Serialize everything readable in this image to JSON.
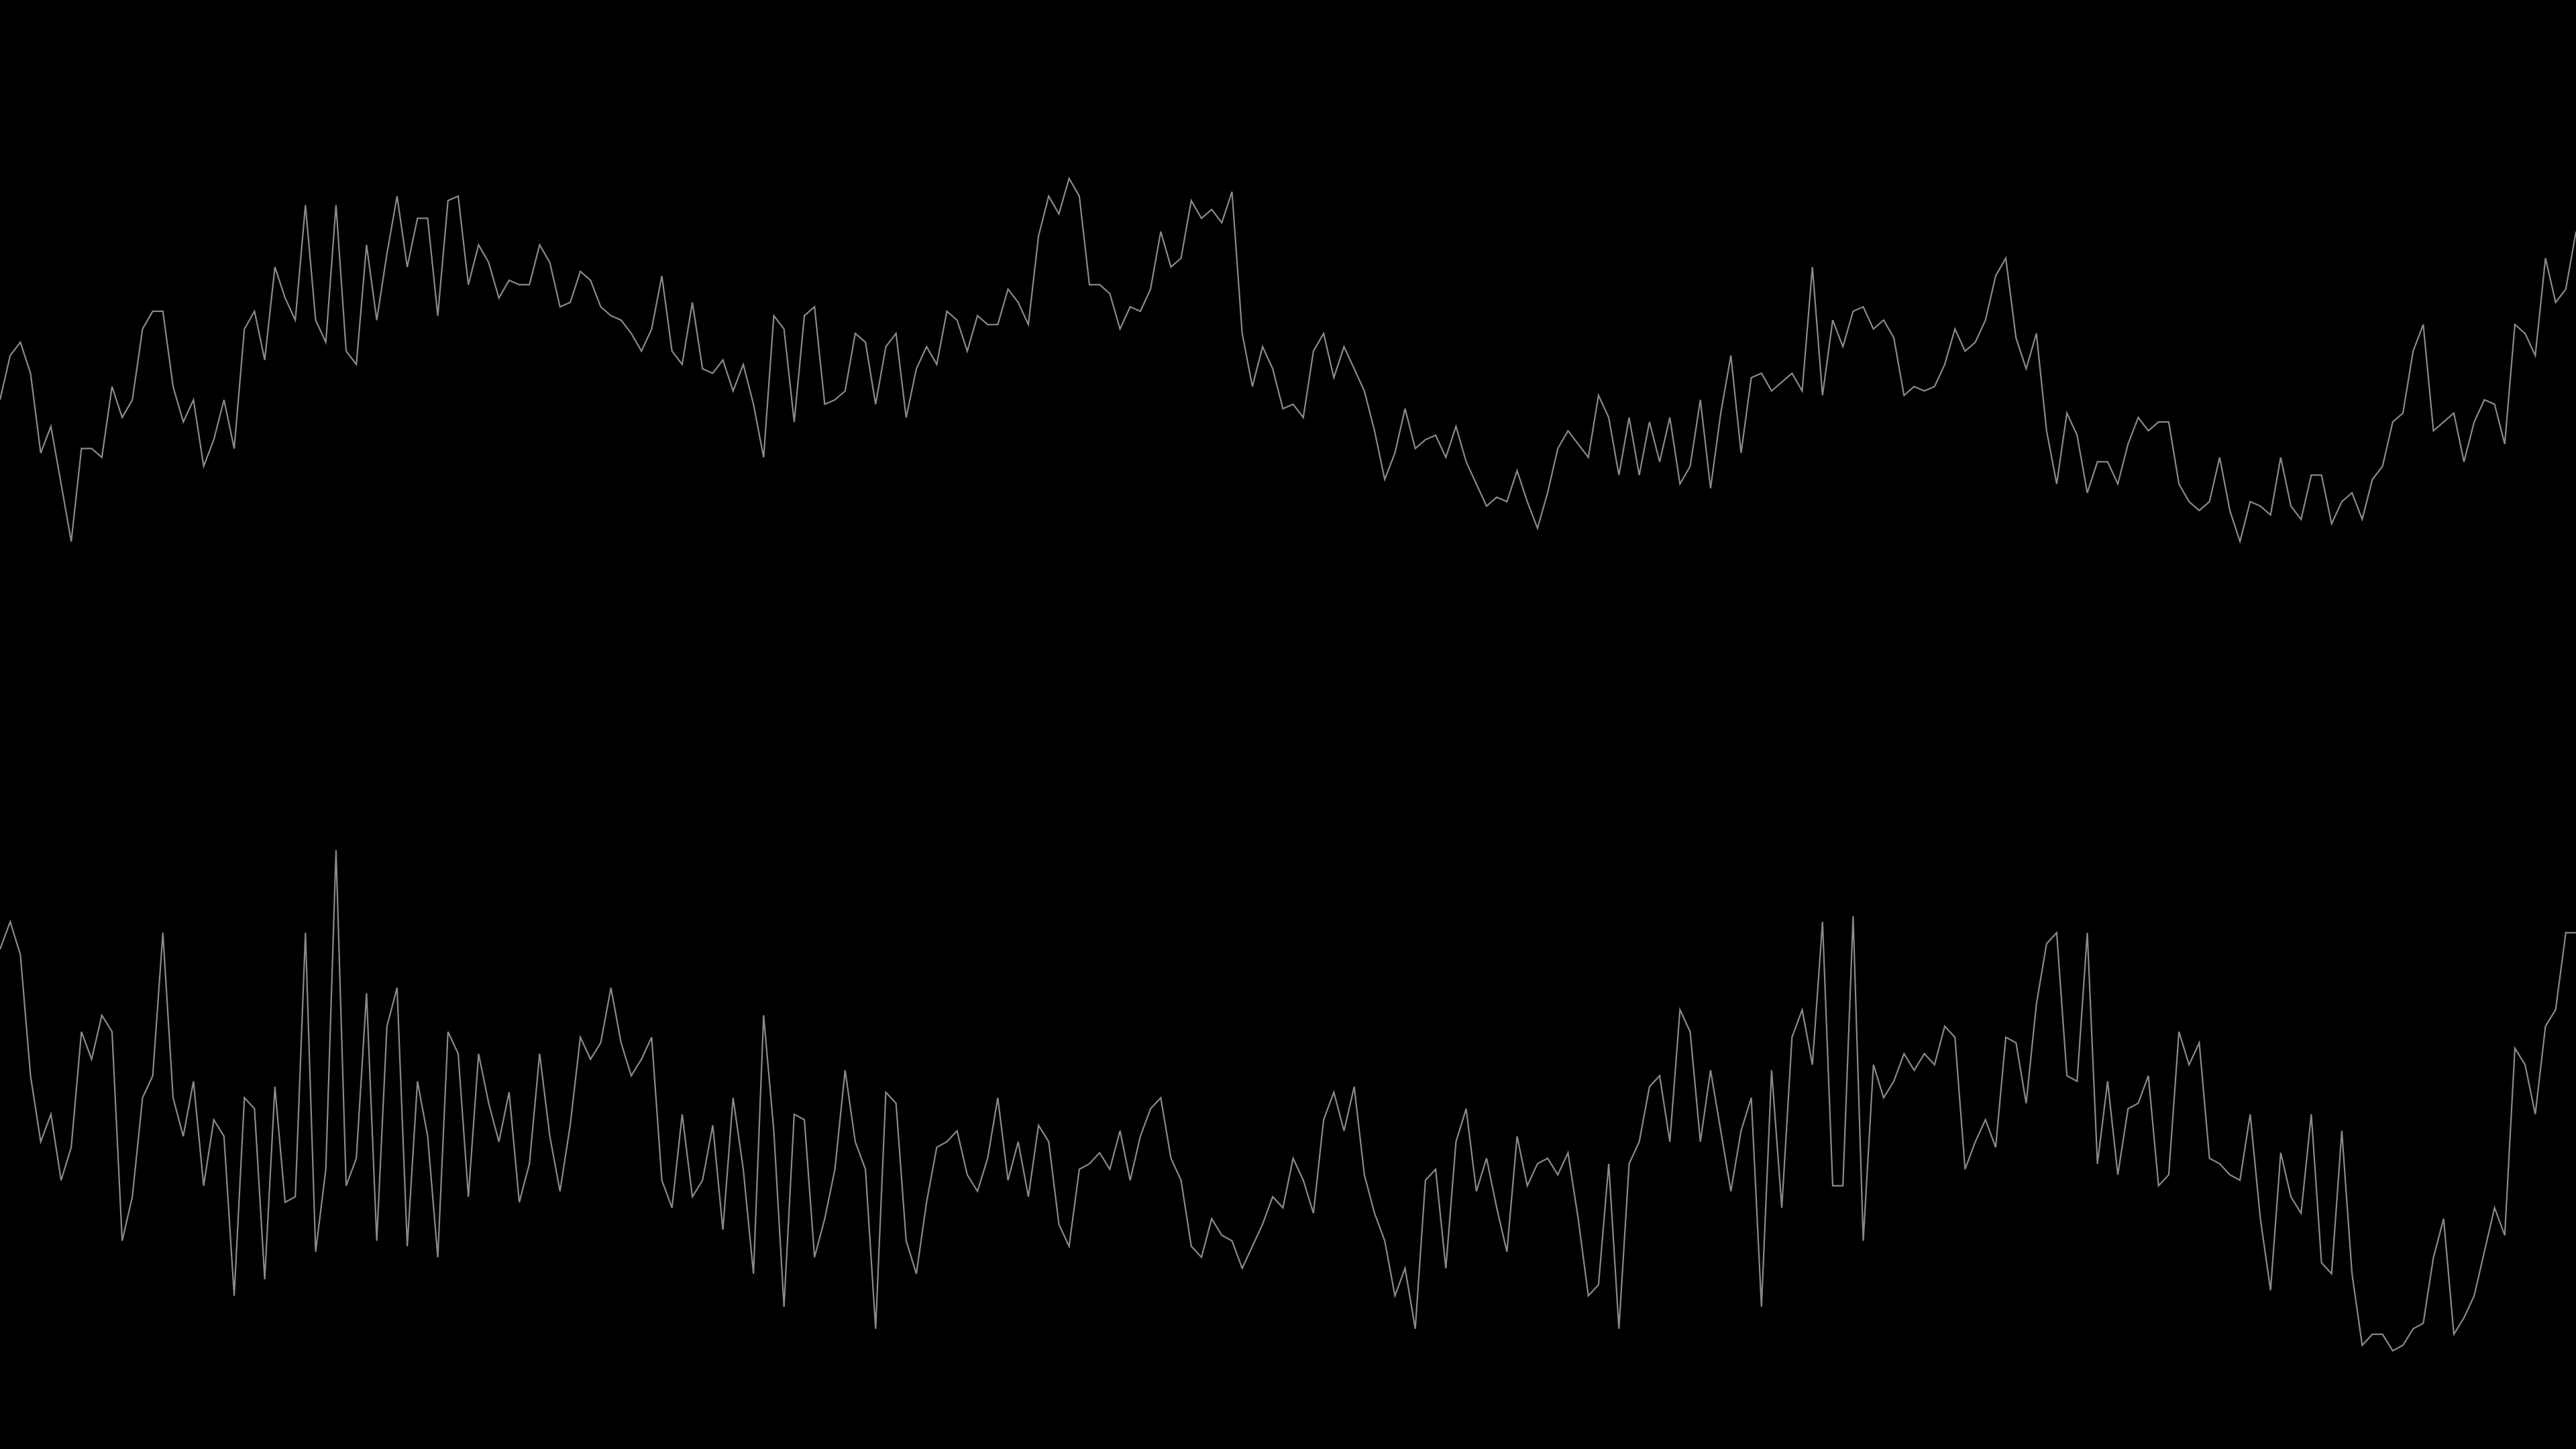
{
  "colors": {
    "background": "#000000",
    "line": "#8a8a8a"
  },
  "chart_data": [
    {
      "type": "line",
      "grid": false,
      "legend": "none",
      "axes_visible": false,
      "xlim": [
        0,
        260
      ],
      "ylim": [
        0,
        1
      ],
      "series": [
        {
          "color": "#8a8a8a",
          "values": [
            0.4,
            0.5,
            0.53,
            0.46,
            0.28,
            0.34,
            0.21,
            0.08,
            0.29,
            0.29,
            0.27,
            0.43,
            0.36,
            0.4,
            0.56,
            0.6,
            0.6,
            0.43,
            0.35,
            0.4,
            0.25,
            0.31,
            0.4,
            0.29,
            0.56,
            0.6,
            0.49,
            0.7,
            0.63,
            0.58,
            0.84,
            0.58,
            0.53,
            0.84,
            0.51,
            0.48,
            0.75,
            0.58,
            0.73,
            0.86,
            0.7,
            0.81,
            0.81,
            0.59,
            0.85,
            0.86,
            0.66,
            0.75,
            0.71,
            0.63,
            0.67,
            0.66,
            0.66,
            0.75,
            0.71,
            0.61,
            0.62,
            0.69,
            0.67,
            0.61,
            0.59,
            0.58,
            0.55,
            0.51,
            0.56,
            0.68,
            0.51,
            0.48,
            0.62,
            0.47,
            0.46,
            0.49,
            0.42,
            0.48,
            0.39,
            0.27,
            0.59,
            0.56,
            0.35,
            0.59,
            0.61,
            0.39,
            0.4,
            0.42,
            0.55,
            0.53,
            0.39,
            0.52,
            0.55,
            0.36,
            0.47,
            0.52,
            0.48,
            0.6,
            0.58,
            0.51,
            0.59,
            0.57,
            0.57,
            0.65,
            0.62,
            0.57,
            0.77,
            0.86,
            0.82,
            0.9,
            0.86,
            0.66,
            0.66,
            0.64,
            0.56,
            0.61,
            0.6,
            0.65,
            0.78,
            0.7,
            0.72,
            0.85,
            0.81,
            0.83,
            0.8,
            0.87,
            0.55,
            0.43,
            0.52,
            0.47,
            0.38,
            0.39,
            0.36,
            0.51,
            0.55,
            0.45,
            0.52,
            0.47,
            0.42,
            0.33,
            0.22,
            0.28,
            0.38,
            0.29,
            0.31,
            0.32,
            0.27,
            0.34,
            0.26,
            0.21,
            0.16,
            0.18,
            0.17,
            0.24,
            0.17,
            0.11,
            0.19,
            0.29,
            0.33,
            0.3,
            0.27,
            0.41,
            0.36,
            0.23,
            0.36,
            0.23,
            0.35,
            0.26,
            0.36,
            0.21,
            0.25,
            0.4,
            0.2,
            0.37,
            0.5,
            0.28,
            0.45,
            0.46,
            0.42,
            0.44,
            0.46,
            0.42,
            0.7,
            0.41,
            0.58,
            0.52,
            0.6,
            0.61,
            0.56,
            0.58,
            0.54,
            0.41,
            0.43,
            0.42,
            0.43,
            0.48,
            0.56,
            0.51,
            0.53,
            0.58,
            0.68,
            0.72,
            0.54,
            0.47,
            0.55,
            0.33,
            0.21,
            0.37,
            0.32,
            0.19,
            0.26,
            0.26,
            0.21,
            0.3,
            0.36,
            0.33,
            0.35,
            0.35,
            0.21,
            0.17,
            0.15,
            0.17,
            0.27,
            0.15,
            0.08,
            0.17,
            0.16,
            0.14,
            0.27,
            0.16,
            0.13,
            0.23,
            0.23,
            0.12,
            0.17,
            0.19,
            0.13,
            0.22,
            0.25,
            0.35,
            0.37,
            0.51,
            0.57,
            0.33,
            0.35,
            0.37,
            0.26,
            0.35,
            0.4,
            0.39,
            0.3,
            0.57,
            0.55,
            0.5,
            0.72,
            0.62,
            0.65,
            0.78
          ]
        }
      ]
    },
    {
      "type": "line",
      "grid": false,
      "legend": "none",
      "axes_visible": false,
      "xlim": [
        0,
        260
      ],
      "ylim": [
        0,
        1
      ],
      "series": [
        {
          "color": "#8a8a8a",
          "values": [
            0.75,
            0.8,
            0.74,
            0.52,
            0.4,
            0.45,
            0.33,
            0.39,
            0.6,
            0.55,
            0.63,
            0.6,
            0.22,
            0.3,
            0.48,
            0.52,
            0.78,
            0.48,
            0.41,
            0.51,
            0.32,
            0.44,
            0.41,
            0.12,
            0.48,
            0.46,
            0.15,
            0.5,
            0.29,
            0.3,
            0.78,
            0.2,
            0.35,
            0.93,
            0.32,
            0.37,
            0.67,
            0.22,
            0.61,
            0.68,
            0.21,
            0.51,
            0.41,
            0.19,
            0.6,
            0.56,
            0.3,
            0.56,
            0.47,
            0.4,
            0.49,
            0.29,
            0.36,
            0.56,
            0.41,
            0.31,
            0.43,
            0.59,
            0.55,
            0.58,
            0.68,
            0.58,
            0.52,
            0.55,
            0.59,
            0.33,
            0.28,
            0.45,
            0.3,
            0.33,
            0.43,
            0.24,
            0.48,
            0.35,
            0.16,
            0.63,
            0.42,
            0.1,
            0.45,
            0.44,
            0.19,
            0.26,
            0.35,
            0.53,
            0.4,
            0.35,
            0.06,
            0.49,
            0.47,
            0.22,
            0.16,
            0.29,
            0.39,
            0.4,
            0.42,
            0.34,
            0.31,
            0.37,
            0.48,
            0.33,
            0.4,
            0.3,
            0.43,
            0.4,
            0.25,
            0.21,
            0.35,
            0.36,
            0.38,
            0.35,
            0.42,
            0.33,
            0.41,
            0.46,
            0.48,
            0.37,
            0.33,
            0.21,
            0.19,
            0.26,
            0.23,
            0.22,
            0.17,
            0.21,
            0.25,
            0.3,
            0.28,
            0.37,
            0.33,
            0.27,
            0.44,
            0.49,
            0.42,
            0.5,
            0.34,
            0.27,
            0.22,
            0.12,
            0.17,
            0.06,
            0.33,
            0.35,
            0.17,
            0.4,
            0.46,
            0.31,
            0.37,
            0.28,
            0.2,
            0.41,
            0.32,
            0.36,
            0.37,
            0.34,
            0.38,
            0.26,
            0.12,
            0.14,
            0.36,
            0.06,
            0.36,
            0.4,
            0.5,
            0.52,
            0.4,
            0.64,
            0.6,
            0.4,
            0.53,
            0.42,
            0.31,
            0.42,
            0.48,
            0.1,
            0.53,
            0.28,
            0.59,
            0.64,
            0.54,
            0.8,
            0.32,
            0.32,
            0.81,
            0.22,
            0.54,
            0.48,
            0.51,
            0.56,
            0.53,
            0.56,
            0.54,
            0.61,
            0.59,
            0.35,
            0.4,
            0.44,
            0.39,
            0.59,
            0.58,
            0.47,
            0.65,
            0.76,
            0.78,
            0.52,
            0.51,
            0.78,
            0.36,
            0.51,
            0.34,
            0.46,
            0.47,
            0.52,
            0.32,
            0.34,
            0.6,
            0.54,
            0.58,
            0.37,
            0.36,
            0.34,
            0.33,
            0.45,
            0.26,
            0.13,
            0.38,
            0.3,
            0.27,
            0.45,
            0.18,
            0.16,
            0.42,
            0.16,
            0.03,
            0.05,
            0.05,
            0.02,
            0.03,
            0.06,
            0.07,
            0.19,
            0.26,
            0.05,
            0.08,
            0.12,
            0.2,
            0.28,
            0.23,
            0.57,
            0.54,
            0.45,
            0.61,
            0.64,
            0.78,
            0.78
          ]
        }
      ]
    }
  ]
}
